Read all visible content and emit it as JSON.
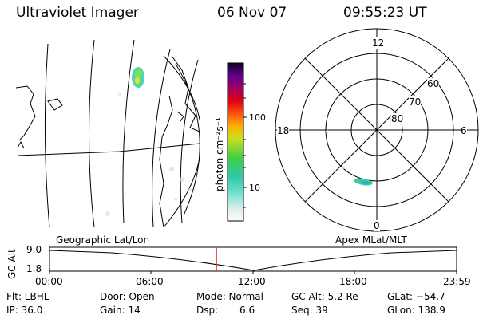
{
  "header": {
    "title": "Ultraviolet Imager",
    "date": "06 Nov 07",
    "time": "09:55:23 UT"
  },
  "colorbar": {
    "unit_label": "photon cm⁻²s⁻¹",
    "ticks": [
      "100",
      "10"
    ]
  },
  "polar": {
    "mlt_labels": {
      "top": "12",
      "left": "18",
      "right": "6",
      "bottom": "0"
    },
    "lat_labels": [
      "60",
      "70",
      "80"
    ]
  },
  "timeline": {
    "left_label": "Geographic Lat/Lon",
    "right_label": "Apex MLat/MLT",
    "y_axis_label": "GC Alt",
    "y_ticks": [
      "9.0",
      "1.8"
    ],
    "x_ticks": [
      "00:00",
      "06:00",
      "12:00",
      "18:00",
      "23:59"
    ]
  },
  "info": {
    "row1": {
      "flt": "Flt: LBHL",
      "door": "Door: Open",
      "mode": "Mode: Normal",
      "gcalt": "GC Alt: 5.2 Re",
      "glat": "GLat: −54.7"
    },
    "row2": {
      "ip": "IP: 36.0",
      "gain": "Gain: 14",
      "dsp_label": "Dsp:",
      "dsp_value": "6.6",
      "seq": "Seq: 39",
      "glon": "GLon: 138.9"
    }
  },
  "colors": {
    "cursor": "#e02020",
    "emission": "#2fd09a"
  }
}
